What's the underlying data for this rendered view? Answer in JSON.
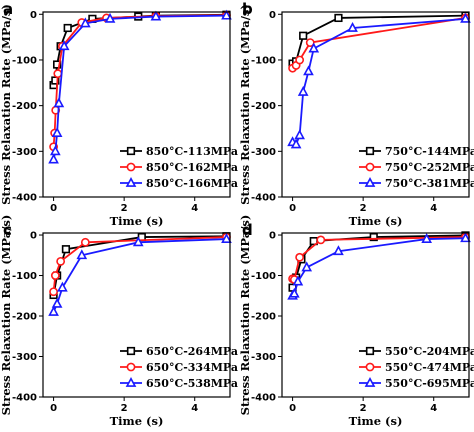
{
  "colors": {
    "black": "#000000",
    "red": "#ff1a1a",
    "blue": "#1a1aff"
  },
  "marker_shapes": {
    "black": "square",
    "red": "circle",
    "blue": "triangle"
  },
  "chart_data": [
    {
      "type": "line",
      "panel": "a",
      "xlabel": "Time (s)",
      "ylabel": "Stress Relaxation Rate (MPa/s)",
      "xlim": [
        -0.3,
        5
      ],
      "ylim": [
        -400,
        5
      ],
      "xticks": [
        0,
        2,
        4
      ],
      "yticks": [
        0,
        -100,
        -200,
        -300,
        -400
      ],
      "legend_position": "bottom-right",
      "series": [
        {
          "name": "850°C-113MPa",
          "color": "black",
          "x": [
            0.0,
            0.05,
            0.1,
            0.2,
            0.4,
            1.1,
            2.4,
            2.9,
            4.9
          ],
          "y": [
            -155,
            -145,
            -110,
            -70,
            -30,
            -10,
            -5,
            -3,
            -1
          ]
        },
        {
          "name": "850°C-162MPa",
          "color": "red",
          "x": [
            0.0,
            0.03,
            0.06,
            0.12,
            0.25,
            0.8,
            1.5,
            2.9,
            4.9
          ],
          "y": [
            -290,
            -260,
            -210,
            -130,
            -70,
            -18,
            -8,
            -4,
            -2
          ]
        },
        {
          "name": "850°C-166MPa",
          "color": "blue",
          "x": [
            0.0,
            0.05,
            0.1,
            0.15,
            0.3,
            0.9,
            1.6,
            2.9,
            4.9
          ],
          "y": [
            -318,
            -300,
            -260,
            -195,
            -70,
            -20,
            -10,
            -5,
            -3
          ]
        }
      ]
    },
    {
      "type": "line",
      "panel": "b",
      "xlabel": "Time (s)",
      "ylabel": "Stress Relaxation Rate (MPa/s)",
      "xlim": [
        -0.3,
        5
      ],
      "ylim": [
        -400,
        5
      ],
      "xticks": [
        0,
        2,
        4
      ],
      "yticks": [
        0,
        -100,
        -200,
        -300,
        -400
      ],
      "legend_position": "bottom-right",
      "series": [
        {
          "name": "750°C-144MPa",
          "color": "black",
          "x": [
            0.0,
            0.1,
            0.3,
            1.3,
            4.9
          ],
          "y": [
            -108,
            -103,
            -47,
            -8,
            -3
          ]
        },
        {
          "name": "750°C-252MPa",
          "color": "red",
          "x": [
            0.0,
            0.1,
            0.2,
            0.5,
            4.9
          ],
          "y": [
            -118,
            -112,
            -100,
            -62,
            -8
          ]
        },
        {
          "name": "750°C-381MPa",
          "color": "blue",
          "x": [
            0.0,
            0.1,
            0.2,
            0.3,
            0.45,
            0.6,
            1.7,
            4.9
          ],
          "y": [
            -280,
            -285,
            -265,
            -170,
            -125,
            -75,
            -30,
            -10
          ]
        }
      ]
    },
    {
      "type": "line",
      "panel": "c",
      "xlabel": "Time (s)",
      "ylabel": "Stress Relaxation Rate (MPa/s)",
      "xlim": [
        -0.3,
        5
      ],
      "ylim": [
        -400,
        5
      ],
      "xticks": [
        0,
        2,
        4
      ],
      "yticks": [
        0,
        -100,
        -200,
        -300,
        -400
      ],
      "legend_position": "bottom-right",
      "series": [
        {
          "name": "650°C-264MPa",
          "color": "black",
          "x": [
            0.0,
            0.1,
            0.35,
            2.5,
            4.9
          ],
          "y": [
            -148,
            -100,
            -35,
            -5,
            -3
          ]
        },
        {
          "name": "650°C-334MPa",
          "color": "red",
          "x": [
            0.0,
            0.05,
            0.2,
            0.9,
            4.9
          ],
          "y": [
            -140,
            -100,
            -65,
            -18,
            -5
          ]
        },
        {
          "name": "650°C-538MPa",
          "color": "blue",
          "x": [
            0.0,
            0.1,
            0.25,
            0.8,
            2.4,
            4.9
          ],
          "y": [
            -190,
            -170,
            -130,
            -50,
            -18,
            -10
          ]
        }
      ]
    },
    {
      "type": "line",
      "panel": "d",
      "xlabel": "Time (s)",
      "ylabel": "Stress Relaxation Rate (MPa/s)",
      "xlim": [
        -0.3,
        5
      ],
      "ylim": [
        -400,
        5
      ],
      "xticks": [
        0,
        2,
        4
      ],
      "yticks": [
        0,
        -100,
        -200,
        -300,
        -400
      ],
      "legend_position": "bottom-right",
      "series": [
        {
          "name": "550°C-204MPa",
          "color": "black",
          "x": [
            0.0,
            0.1,
            0.25,
            0.6,
            2.3,
            4.9
          ],
          "y": [
            -130,
            -105,
            -60,
            -15,
            -5,
            -1
          ]
        },
        {
          "name": "550°C-474MPa",
          "color": "red",
          "x": [
            0.0,
            0.05,
            0.2,
            0.8,
            4.9
          ],
          "y": [
            -108,
            -110,
            -55,
            -12,
            -5
          ]
        },
        {
          "name": "550°C-695MPa",
          "color": "blue",
          "x": [
            0.0,
            0.05,
            0.15,
            0.4,
            1.3,
            3.8,
            4.9
          ],
          "y": [
            -150,
            -145,
            -115,
            -80,
            -40,
            -10,
            -8
          ]
        }
      ]
    }
  ]
}
